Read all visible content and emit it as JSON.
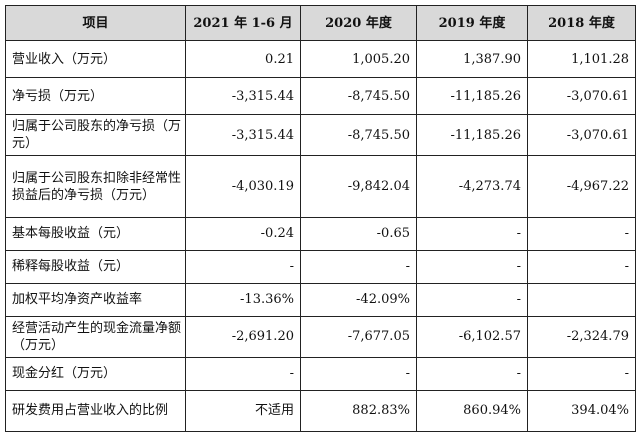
{
  "table": {
    "headers": [
      "项目",
      "2021 年 1-6 月",
      "2020 年度",
      "2019 年度",
      "2018 年度"
    ],
    "rows": [
      {
        "label": "营业收入（万元）",
        "values": [
          "0.21",
          "1,005.20",
          "1,387.90",
          "1,101.28"
        ]
      },
      {
        "label": "净亏损（万元）",
        "values": [
          "-3,315.44",
          "-8,745.50",
          "-11,185.26",
          "-3,070.61"
        ]
      },
      {
        "label": "归属于公司股东的净亏损（万元）",
        "values": [
          "-3,315.44",
          "-8,745.50",
          "-11,185.26",
          "-3,070.61"
        ]
      },
      {
        "label": "归属于公司股东扣除非经常性损益后的净亏损（万元）",
        "values": [
          "-4,030.19",
          "-9,842.04",
          "-4,273.74",
          "-4,967.22"
        ]
      },
      {
        "label": "基本每股收益（元）",
        "values": [
          "-0.24",
          "-0.65",
          "-",
          "-"
        ]
      },
      {
        "label": "稀释每股收益（元）",
        "values": [
          "-",
          "-",
          "-",
          "-"
        ]
      },
      {
        "label": "加权平均净资产收益率",
        "values": [
          "-13.36%",
          "-42.09%",
          "-",
          ""
        ]
      },
      {
        "label": "经营活动产生的现金流量净额（万元）",
        "values": [
          "-2,691.20",
          "-7,677.05",
          "-6,102.57",
          "-2,324.79"
        ]
      },
      {
        "label": "现金分红（万元）",
        "values": [
          "-",
          "-",
          "-",
          "-"
        ]
      },
      {
        "label": "研发费用占营业收入的比例",
        "values": [
          "不适用",
          "882.83%",
          "860.94%",
          "394.04%"
        ]
      }
    ]
  }
}
